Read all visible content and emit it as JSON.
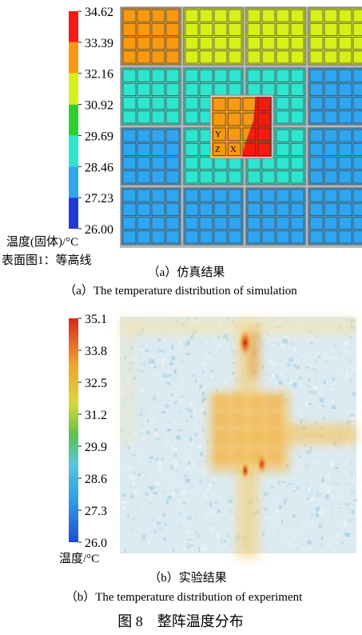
{
  "chart_data": [
    {
      "type": "heatmap",
      "colorbar": {
        "ticks": [
          "34.62",
          "33.39",
          "32.16",
          "30.92",
          "29.69",
          "28.46",
          "27.23",
          "26.00"
        ],
        "range": [
          26.0,
          34.62
        ],
        "bands": [
          {
            "from": 33.39,
            "to": 34.62,
            "color": "#f71a0f"
          },
          {
            "from": 32.16,
            "to": 33.39,
            "color": "#f79a12"
          },
          {
            "from": 30.92,
            "to": 32.16,
            "color": "#d8f01a"
          },
          {
            "from": 29.69,
            "to": 30.92,
            "color": "#2fcf2f"
          },
          {
            "from": 28.46,
            "to": 29.69,
            "color": "#2ee6cf"
          },
          {
            "from": 27.23,
            "to": 28.46,
            "color": "#2fa6f0"
          },
          {
            "from": 26.0,
            "to": 27.23,
            "color": "#1f3ad6"
          }
        ],
        "label_line1": "温度(固体)/°C",
        "label_line2": "表面图1：等高线"
      },
      "grid": {
        "rows": [
          [
            "orange",
            "yellow",
            "yellow",
            "yellow"
          ],
          [
            "cyan",
            "cyan",
            "cyan",
            "blue"
          ],
          [
            "blue",
            "cyan",
            "cyan",
            "blue"
          ],
          [
            "blue",
            "blue",
            "blue",
            "blue"
          ]
        ],
        "center_module": {
          "base": "orange",
          "hot_corner": "red"
        },
        "axis_triad": [
          "Y",
          "Z",
          "X"
        ]
      },
      "caption_cn": "（a）仿真结果",
      "caption_en": "（a）The temperature distribution of simulation"
    },
    {
      "type": "heatmap",
      "colorbar": {
        "ticks": [
          "35.1",
          "33.8",
          "32.5",
          "31.2",
          "29.9",
          "28.6",
          "27.3",
          "26.0"
        ],
        "range": [
          26.0,
          35.1
        ],
        "label": "温度/°C"
      },
      "hotspots": [
        {
          "x": 0.53,
          "y": 0.11,
          "value": 35.1
        },
        {
          "x": 0.6,
          "y": 0.62,
          "value": 34.5
        },
        {
          "x": 0.53,
          "y": 0.65,
          "value": 34.3
        }
      ],
      "caption_cn": "（b）实验结果",
      "caption_en": "（b）The temperature distribution of experiment"
    }
  ],
  "figure_caption": "图 8    整阵温度分布",
  "colors": {
    "orange": "#f79a12",
    "yellow": "#d8f01a",
    "cyan": "#2ee6cf",
    "blue": "#2fa6f0",
    "red": "#f71a0f"
  }
}
